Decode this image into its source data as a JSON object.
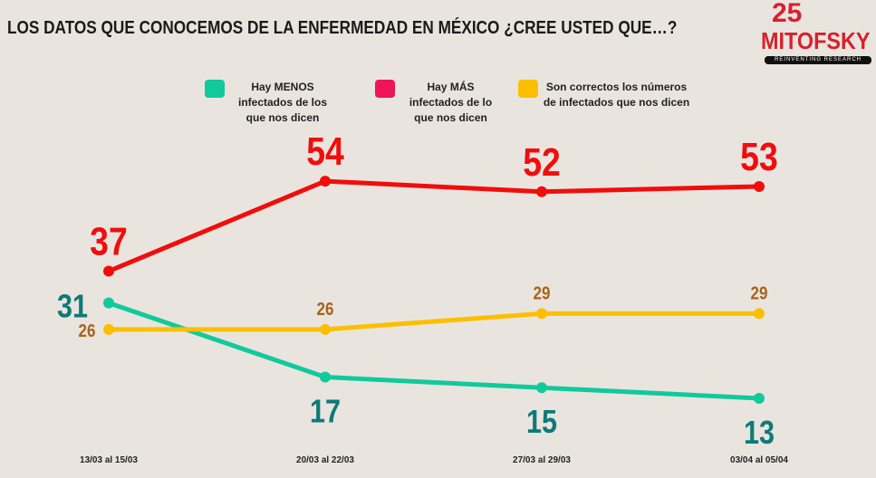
{
  "title": "LOS DATOS QUE CONOCEMOS DE LA ENFERMEDAD EN MÉXICO ¿CREE USTED QUE…?",
  "logo": {
    "number": "25",
    "brand": "MITOFSKY",
    "tagline": "REINVENTING RESEARCH"
  },
  "chart_data": {
    "type": "line",
    "categories": [
      "13/03 al 15/03",
      "20/03 al 22/03",
      "27/03 al 29/03",
      "03/04 al 05/04"
    ],
    "legend_position": "top",
    "grid": false,
    "series": [
      {
        "name": "Hay MÁS infectados de lo que nos dicen",
        "color": "#f20d0d",
        "swatch": "#f0135a",
        "values": [
          37,
          54,
          52,
          53
        ]
      },
      {
        "name": "Hay MENOS infectados de los que nos dicen",
        "color": "#12c99b",
        "label_color": "#0e7a78",
        "swatch": "#12c99b",
        "values": [
          31,
          17,
          15,
          13
        ]
      },
      {
        "name": "Son correctos los números de infectados que nos dicen",
        "color": "#fcbf00",
        "label_color": "#a8631a",
        "swatch": "#fcbf00",
        "values": [
          26,
          26,
          29,
          29
        ]
      }
    ]
  }
}
